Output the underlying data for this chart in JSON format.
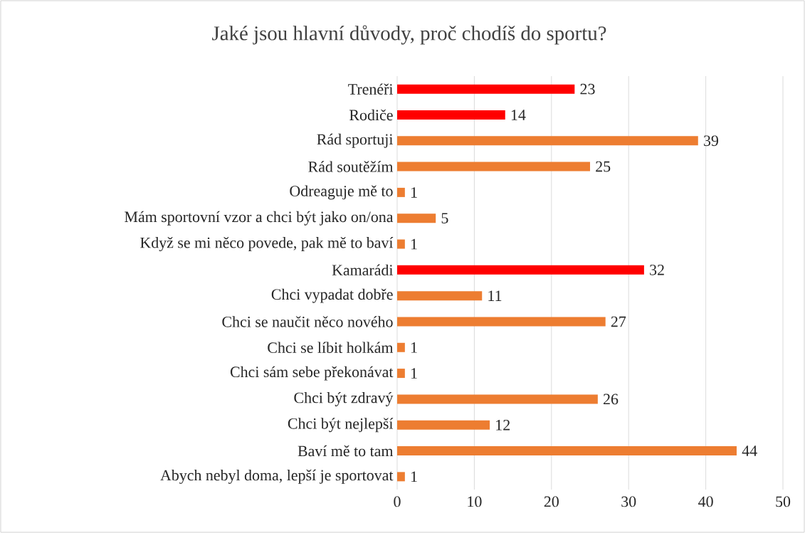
{
  "chart_data": {
    "type": "bar",
    "orientation": "horizontal",
    "title": "Jaké jsou hlavní důvody, proč chodíš do sportu?",
    "categories": [
      "Trenéři",
      "Rodiče",
      "Rád sportuji",
      "Rád soutěžím",
      "Odreaguje mě to",
      "Mám sportovní vzor a chci být jako on/ona",
      "Když se mi něco povede, pak mě to baví",
      "Kamarádi",
      "Chci vypadat dobře",
      "Chci se naučit něco nového",
      "Chci se líbit holkám",
      "Chci sám sebe překonávat",
      "Chci být zdravý",
      "Chci být nejlepší",
      "Baví mě to tam",
      "Abych nebyl doma, lepší je sportovat"
    ],
    "values": [
      23,
      14,
      39,
      25,
      1,
      5,
      1,
      32,
      11,
      27,
      1,
      1,
      26,
      12,
      44,
      1
    ],
    "colors": [
      "#ff0000",
      "#ff0000",
      "#ed7d31",
      "#ed7d31",
      "#ed7d31",
      "#ed7d31",
      "#ed7d31",
      "#ff0000",
      "#ed7d31",
      "#ed7d31",
      "#ed7d31",
      "#ed7d31",
      "#ed7d31",
      "#ed7d31",
      "#ed7d31",
      "#ed7d31"
    ],
    "xlim": [
      0,
      50
    ],
    "xticks": [
      0,
      10,
      20,
      30,
      40,
      50
    ],
    "grid": "x",
    "data_labels": true
  }
}
